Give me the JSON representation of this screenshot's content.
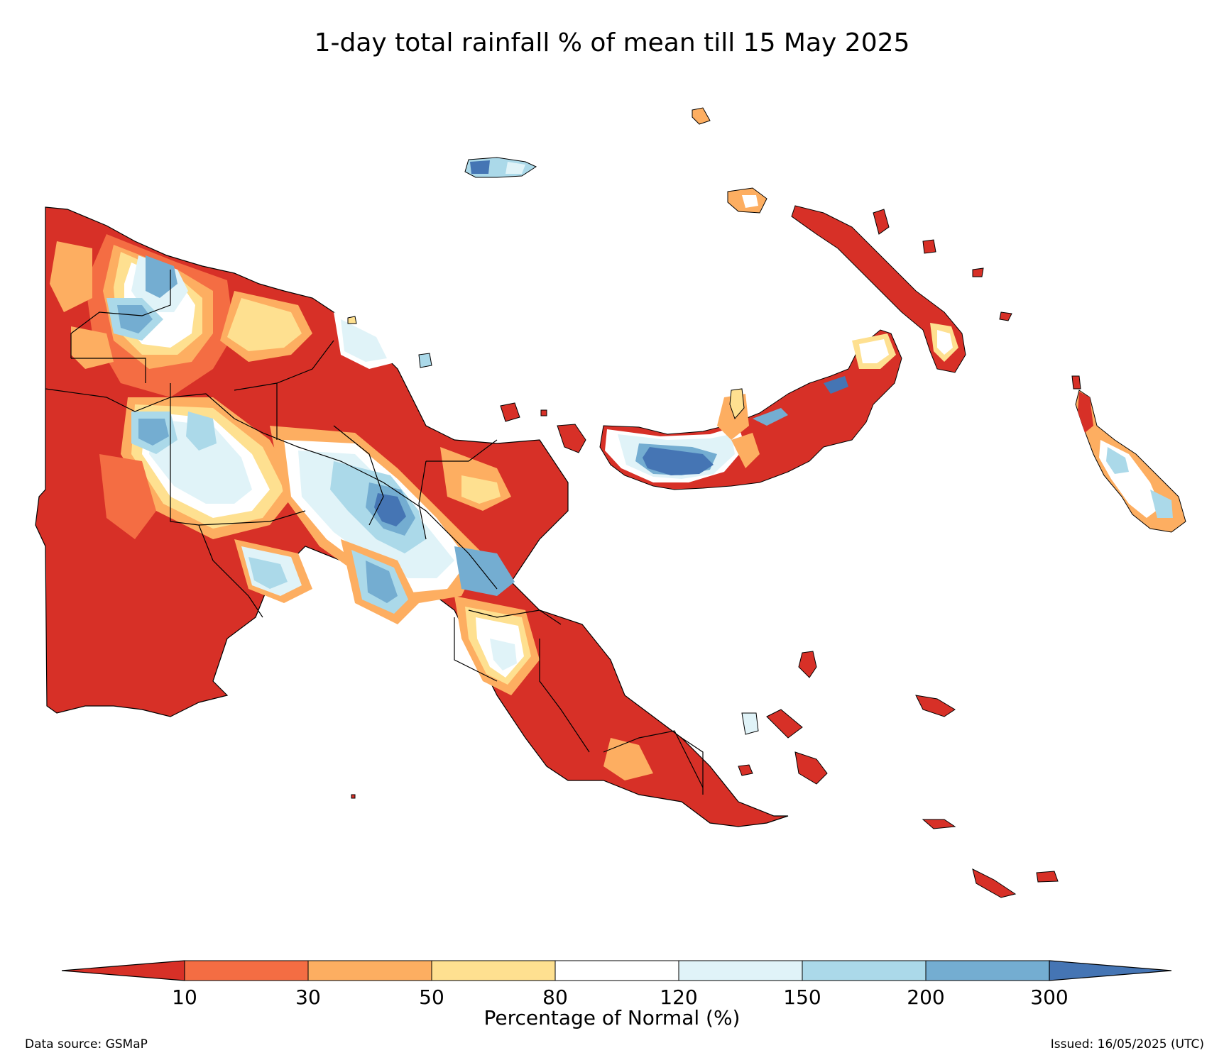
{
  "title": "1-day total rainfall % of mean till 15 May 2025",
  "legend": {
    "title": "Percentage of Normal (%)",
    "ticks": [
      "10",
      "30",
      "50",
      "80",
      "120",
      "150",
      "200",
      "300"
    ],
    "colors": {
      "lt10": "#d73027",
      "c10_30": "#f46d43",
      "c30_50": "#fdae61",
      "c50_80": "#fee090",
      "c80_120": "#ffffff",
      "c120_150": "#e0f3f8",
      "c150_200": "#abd9e9",
      "c200_300": "#74add1",
      "gt300": "#4575b4"
    }
  },
  "footer": {
    "source": "Data source: GSMaP",
    "issued": "Issued: 16/05/2025 (UTC)"
  }
}
